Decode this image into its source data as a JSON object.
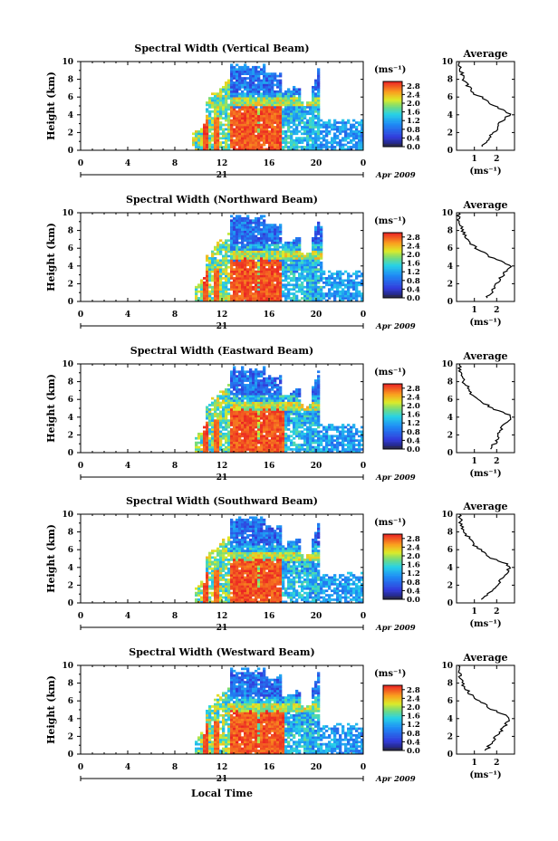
{
  "chart_data": [
    {
      "type": "heatmap",
      "title": "Spectral Width (Vertical Beam)",
      "ylabel": "Height (km)",
      "xticks": [
        "0",
        "4",
        "8",
        "12",
        "16",
        "20",
        "0"
      ],
      "yticks": [
        "0",
        "2",
        "4",
        "6",
        "8",
        "10"
      ],
      "xlim": [
        0,
        24
      ],
      "ylim": [
        0,
        10
      ],
      "day_label": "21",
      "month_label": "Apr 2009",
      "colorbar": {
        "unit": "(ms⁻¹)",
        "ticks": [
          "0.0",
          "0.4",
          "0.8",
          "1.2",
          "1.6",
          "2.0",
          "2.4",
          "2.8"
        ],
        "range": [
          0,
          3.0
        ]
      },
      "features": {
        "onset_h": 9.5,
        "core": [
          12.6,
          17.1,
          4.9
        ],
        "cloud": [
          12.0,
          20.3,
          10.0
        ],
        "tail": [
          19.2,
          24.0,
          3.3
        ]
      },
      "average": {
        "title": "Average",
        "xlabel": "(ms⁻¹)",
        "xticks": [
          "1",
          "2"
        ],
        "xlim": [
          0.2,
          2.8
        ],
        "profile_height_km": [
          0.4,
          1,
          2,
          3,
          3.7,
          4,
          4.3,
          5,
          6,
          6.5,
          7.5,
          8,
          9,
          10
        ],
        "profile_ms": [
          1.3,
          1.5,
          1.9,
          2.1,
          2.45,
          2.6,
          2.5,
          1.9,
          1.3,
          0.9,
          0.65,
          0.5,
          0.38,
          0.28
        ]
      }
    },
    {
      "type": "heatmap",
      "title": "Spectral Width (Northward Beam)",
      "ylabel": "Height (km)",
      "xticks": [
        "0",
        "4",
        "8",
        "12",
        "16",
        "20",
        "0"
      ],
      "yticks": [
        "0",
        "2",
        "4",
        "6",
        "8",
        "10"
      ],
      "xlim": [
        0,
        24
      ],
      "ylim": [
        0,
        10
      ],
      "day_label": "21",
      "month_label": "Apr 2009",
      "colorbar": {
        "unit": "(ms⁻¹)",
        "ticks": [
          "0.0",
          "0.4",
          "0.8",
          "1.2",
          "1.6",
          "2.0",
          "2.4",
          "2.8"
        ],
        "range": [
          0,
          3.0
        ]
      },
      "features": {
        "onset_h": 9.8,
        "core": [
          12.8,
          17.0,
          4.7
        ],
        "cloud": [
          12.1,
          20.5,
          9.0
        ],
        "tail": [
          19.2,
          24.0,
          3.3
        ]
      },
      "average": {
        "title": "Average",
        "xlabel": "(ms⁻¹)",
        "xticks": [
          "1",
          "2"
        ],
        "xlim": [
          0.2,
          2.8
        ],
        "profile_height_km": [
          0.4,
          1,
          2,
          3,
          3.6,
          4,
          4.3,
          5,
          6,
          6.5,
          7.5,
          8,
          9,
          10
        ],
        "profile_ms": [
          1.5,
          1.8,
          2.0,
          2.3,
          2.5,
          2.6,
          2.4,
          1.7,
          1.1,
          0.8,
          0.6,
          0.45,
          0.35,
          0.25
        ]
      }
    },
    {
      "type": "heatmap",
      "title": "Spectral Width (Eastward Beam)",
      "ylabel": "Height (km)",
      "xticks": [
        "0",
        "4",
        "8",
        "12",
        "16",
        "20",
        "0"
      ],
      "yticks": [
        "0",
        "2",
        "4",
        "6",
        "8",
        "10"
      ],
      "xlim": [
        0,
        24
      ],
      "ylim": [
        0,
        10
      ],
      "day_label": "21",
      "month_label": "Apr 2009",
      "colorbar": {
        "unit": "(ms⁻¹)",
        "ticks": [
          "0.0",
          "0.4",
          "0.8",
          "1.2",
          "1.6",
          "2.0",
          "2.4",
          "2.8"
        ],
        "range": [
          0,
          3.0
        ]
      },
      "features": {
        "onset_h": 9.7,
        "core": [
          12.6,
          17.2,
          4.8
        ],
        "cloud": [
          12.0,
          20.2,
          10.0
        ],
        "tail": [
          19.2,
          24.0,
          3.0
        ]
      },
      "average": {
        "title": "Average",
        "xlabel": "(ms⁻¹)",
        "xticks": [
          "1",
          "2"
        ],
        "xlim": [
          0.2,
          2.8
        ],
        "profile_height_km": [
          0.4,
          1,
          2,
          3,
          3.7,
          4,
          4.3,
          5,
          6,
          6.5,
          7.5,
          8,
          9,
          10
        ],
        "profile_ms": [
          1.7,
          1.9,
          2.1,
          2.3,
          2.55,
          2.65,
          2.5,
          1.8,
          1.2,
          0.9,
          0.7,
          0.5,
          0.4,
          0.3
        ]
      }
    },
    {
      "type": "heatmap",
      "title": "Spectral Width (Southward Beam)",
      "ylabel": "Height (km)",
      "xticks": [
        "0",
        "4",
        "8",
        "12",
        "16",
        "20",
        "0"
      ],
      "yticks": [
        "0",
        "2",
        "4",
        "6",
        "8",
        "10"
      ],
      "xlim": [
        0,
        24
      ],
      "ylim": [
        0,
        10
      ],
      "day_label": "21",
      "month_label": "Apr 2009",
      "colorbar": {
        "unit": "(ms⁻¹)",
        "ticks": [
          "0.0",
          "0.4",
          "0.8",
          "1.2",
          "1.6",
          "2.0",
          "2.4",
          "2.8"
        ],
        "range": [
          0,
          3.0
        ]
      },
      "features": {
        "onset_h": 9.8,
        "core": [
          12.6,
          17.0,
          4.8
        ],
        "cloud": [
          12.0,
          20.3,
          10.0
        ],
        "tail": [
          19.2,
          24.0,
          3.2
        ]
      },
      "average": {
        "title": "Average",
        "xlabel": "(ms⁻¹)",
        "xticks": [
          "1",
          "2"
        ],
        "xlim": [
          0.2,
          2.8
        ],
        "profile_height_km": [
          0.4,
          1,
          2,
          3,
          3.7,
          4,
          4.3,
          5,
          6,
          6.5,
          7.5,
          8,
          9,
          10
        ],
        "profile_ms": [
          1.4,
          1.6,
          2.0,
          2.3,
          2.5,
          2.6,
          2.5,
          1.8,
          1.3,
          1.0,
          0.7,
          0.55,
          0.4,
          0.3
        ]
      }
    },
    {
      "type": "heatmap",
      "title": "Spectral Width (Westward Beam)",
      "ylabel": "Height (km)",
      "xticks": [
        "0",
        "4",
        "8",
        "12",
        "16",
        "20",
        "0"
      ],
      "yticks": [
        "0",
        "2",
        "4",
        "6",
        "8",
        "10"
      ],
      "xlim": [
        0,
        24
      ],
      "ylim": [
        0,
        10
      ],
      "day_label": "21",
      "month_label": "Apr 2009",
      "colorbar": {
        "unit": "(ms⁻¹)",
        "ticks": [
          "0.0",
          "0.4",
          "0.8",
          "1.2",
          "1.6",
          "2.0",
          "2.4",
          "2.8"
        ],
        "range": [
          0,
          3.0
        ]
      },
      "features": {
        "onset_h": 9.8,
        "core": [
          12.6,
          17.3,
          4.8
        ],
        "cloud": [
          12.0,
          20.3,
          10.0
        ],
        "tail": [
          19.2,
          24.0,
          3.2
        ]
      },
      "average": {
        "title": "Average",
        "xlabel": "(ms⁻¹)",
        "xticks": [
          "1",
          "2"
        ],
        "xlim": [
          0.2,
          2.8
        ],
        "profile_height_km": [
          0.4,
          1,
          2,
          3,
          3.7,
          4,
          4.3,
          5,
          6,
          6.5,
          7.5,
          8,
          9,
          10
        ],
        "profile_ms": [
          1.5,
          1.7,
          2.0,
          2.3,
          2.5,
          2.6,
          2.5,
          1.8,
          1.2,
          0.9,
          0.6,
          0.45,
          0.35,
          0.25
        ]
      }
    }
  ],
  "xlabel": "Local Time"
}
